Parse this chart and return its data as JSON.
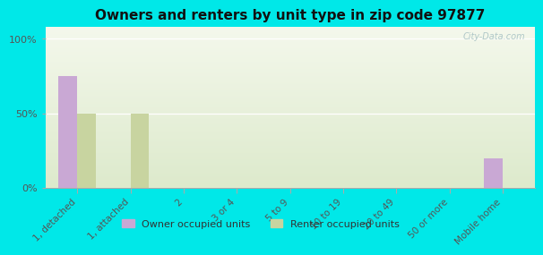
{
  "title": "Owners and renters by unit type in zip code 97877",
  "categories": [
    "1, detached",
    "1, attached",
    "2",
    "3 or 4",
    "5 to 9",
    "10 to 19",
    "20 to 49",
    "50 or more",
    "Mobile home"
  ],
  "owner_values": [
    75,
    0,
    0,
    0,
    0,
    0,
    0,
    0,
    20
  ],
  "renter_values": [
    50,
    50,
    0,
    0,
    0,
    0,
    0,
    0,
    0
  ],
  "owner_color": "#c9a8d4",
  "renter_color": "#c8d4a0",
  "background_outer": "#00e8e8",
  "background_plot_top": "#ddeacc",
  "background_plot_bottom": "#f4f8ec",
  "yticks": [
    0,
    50,
    100
  ],
  "ytick_labels": [
    "0%",
    "50%",
    "100%"
  ],
  "ylim": [
    0,
    108
  ],
  "bar_width": 0.35,
  "legend_owner": "Owner occupied units",
  "legend_renter": "Renter occupied units",
  "watermark": "City-Data.com"
}
